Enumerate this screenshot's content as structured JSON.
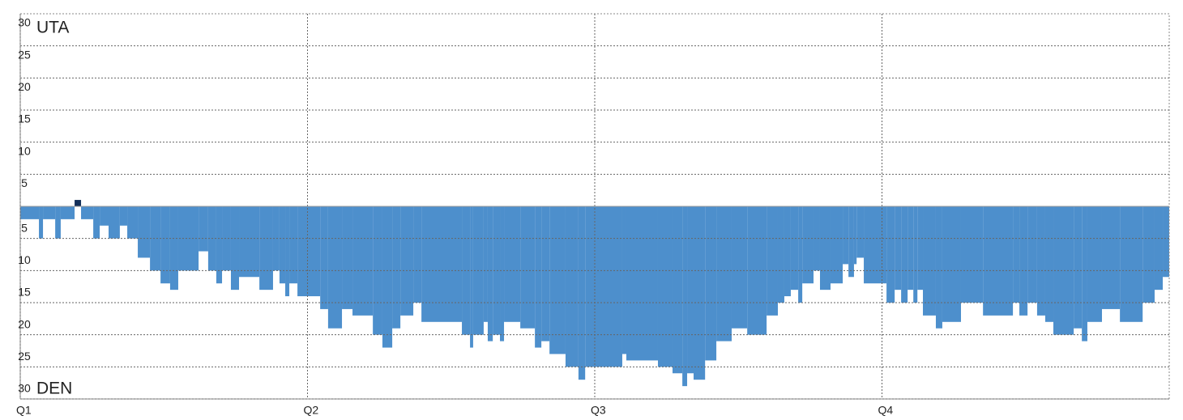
{
  "chart_data": {
    "type": "step-area",
    "annotations": [
      "UTA",
      "DEN"
    ],
    "x": [
      0,
      0.78,
      0.95,
      1.46,
      1.69,
      2.27,
      2.54,
      3.05,
      3.32,
      3.69,
      4.16,
      4.47,
      4.91,
      5.42,
      5.86,
      6.26,
      6.6,
      7.45,
      7.85,
      8.19,
      8.43,
      8.8,
      9.14,
      9.99,
      10.56,
      10.83,
      11.07,
      11.24,
      11.58,
      12.53,
      12.86,
      13.44,
      13.88,
      14.73,
      15.13,
      15.54,
      15.88,
      16.42,
      16.76,
      18.45,
      18.79,
      18.92,
      19.36,
      19.53,
      19.74,
      20.04,
      20.21,
      20.89,
      21.5,
      21.77,
      22.11,
      22.78,
      23.32,
      23.6,
      25.15,
      25.32,
      26.64,
      27.25,
      27.66,
      27.86,
      28.13,
      28.61,
      29.08,
      29.72,
      30.37,
      31.18,
      31.65,
      31.92,
      32.19,
      32.5,
      32.67,
      33.14,
      33.41,
      33.85,
      34.36,
      34.6,
      34.83,
      34.94,
      35.24,
      36.19,
      36.53,
      36.8,
      37.07,
      37.31,
      37.48,
      37.71,
      38.25,
      38.52,
      39.3,
      40.22,
      41.47,
      41.74,
      42.08,
      42.48,
      42.82,
      43.16,
      44.01,
      44.35,
      44.58,
      45.19,
      45.94,
      46.89,
      47.39,
      47.73
    ],
    "values": [
      -2,
      -5,
      -2,
      -5,
      -2,
      1,
      -2,
      -5,
      -3,
      -5,
      -3,
      -5,
      -8,
      -10,
      -12,
      -13,
      -10,
      -7,
      -10,
      -12,
      -10,
      -13,
      -11,
      -13,
      -10,
      -12,
      -14,
      -12,
      -14,
      -16,
      -19,
      -16,
      -17,
      -20,
      -22,
      -19,
      -17,
      -15,
      -18,
      -20,
      -22,
      -20,
      -18,
      -21,
      -20,
      -21,
      -18,
      -19,
      -22,
      -21,
      -23,
      -25,
      -27,
      -25,
      -23,
      -24,
      -25,
      -26,
      -28,
      -26,
      -27,
      -24,
      -21,
      -19,
      -20,
      -17,
      -15,
      -14,
      -13,
      -15,
      -12,
      -10,
      -13,
      -12,
      -9,
      -11,
      -9,
      -8,
      -12,
      -15,
      -13,
      -15,
      -13,
      -15,
      -13,
      -17,
      -19,
      -18,
      -15,
      -17,
      -15,
      -17,
      -15,
      -17,
      -18,
      -20,
      -19,
      -21,
      -18,
      -16,
      -18,
      -15,
      -13,
      -11
    ],
    "positive_color": "#14305a",
    "negative_color": "#4d8fcc",
    "xlim": [
      0,
      48
    ],
    "xticks": [
      {
        "value": 0,
        "label": "Q1"
      },
      {
        "value": 12,
        "label": "Q2"
      },
      {
        "value": 24,
        "label": "Q3"
      },
      {
        "value": 36,
        "label": "Q4"
      }
    ],
    "ylim": [
      -30,
      30
    ],
    "yticks": [
      30,
      25,
      20,
      15,
      10,
      5,
      {
        "value": -5,
        "label": "5"
      },
      {
        "value": -10,
        "label": "10"
      },
      {
        "value": -15,
        "label": "15"
      },
      {
        "value": -20,
        "label": "20"
      },
      {
        "value": -25,
        "label": "25"
      },
      {
        "value": -30,
        "label": "30"
      }
    ],
    "grid": true
  }
}
